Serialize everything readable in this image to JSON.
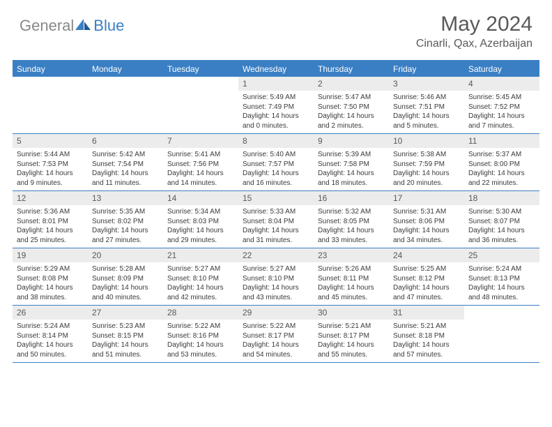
{
  "brand": {
    "general": "General",
    "blue": "Blue"
  },
  "title": {
    "month_year": "May 2024",
    "location": "Cinarli, Qax, Azerbaijan"
  },
  "colors": {
    "accent": "#3a7fc4",
    "text_muted": "#595959",
    "cell_num_bg": "#ececec",
    "body_text": "#3a3a3a",
    "background": "#ffffff"
  },
  "day_names": [
    "Sunday",
    "Monday",
    "Tuesday",
    "Wednesday",
    "Thursday",
    "Friday",
    "Saturday"
  ],
  "weeks": [
    [
      {
        "n": "",
        "l1": "",
        "l2": "",
        "l3": "",
        "l4": ""
      },
      {
        "n": "",
        "l1": "",
        "l2": "",
        "l3": "",
        "l4": ""
      },
      {
        "n": "",
        "l1": "",
        "l2": "",
        "l3": "",
        "l4": ""
      },
      {
        "n": "1",
        "l1": "Sunrise: 5:49 AM",
        "l2": "Sunset: 7:49 PM",
        "l3": "Daylight: 14 hours",
        "l4": "and 0 minutes."
      },
      {
        "n": "2",
        "l1": "Sunrise: 5:47 AM",
        "l2": "Sunset: 7:50 PM",
        "l3": "Daylight: 14 hours",
        "l4": "and 2 minutes."
      },
      {
        "n": "3",
        "l1": "Sunrise: 5:46 AM",
        "l2": "Sunset: 7:51 PM",
        "l3": "Daylight: 14 hours",
        "l4": "and 5 minutes."
      },
      {
        "n": "4",
        "l1": "Sunrise: 5:45 AM",
        "l2": "Sunset: 7:52 PM",
        "l3": "Daylight: 14 hours",
        "l4": "and 7 minutes."
      }
    ],
    [
      {
        "n": "5",
        "l1": "Sunrise: 5:44 AM",
        "l2": "Sunset: 7:53 PM",
        "l3": "Daylight: 14 hours",
        "l4": "and 9 minutes."
      },
      {
        "n": "6",
        "l1": "Sunrise: 5:42 AM",
        "l2": "Sunset: 7:54 PM",
        "l3": "Daylight: 14 hours",
        "l4": "and 11 minutes."
      },
      {
        "n": "7",
        "l1": "Sunrise: 5:41 AM",
        "l2": "Sunset: 7:56 PM",
        "l3": "Daylight: 14 hours",
        "l4": "and 14 minutes."
      },
      {
        "n": "8",
        "l1": "Sunrise: 5:40 AM",
        "l2": "Sunset: 7:57 PM",
        "l3": "Daylight: 14 hours",
        "l4": "and 16 minutes."
      },
      {
        "n": "9",
        "l1": "Sunrise: 5:39 AM",
        "l2": "Sunset: 7:58 PM",
        "l3": "Daylight: 14 hours",
        "l4": "and 18 minutes."
      },
      {
        "n": "10",
        "l1": "Sunrise: 5:38 AM",
        "l2": "Sunset: 7:59 PM",
        "l3": "Daylight: 14 hours",
        "l4": "and 20 minutes."
      },
      {
        "n": "11",
        "l1": "Sunrise: 5:37 AM",
        "l2": "Sunset: 8:00 PM",
        "l3": "Daylight: 14 hours",
        "l4": "and 22 minutes."
      }
    ],
    [
      {
        "n": "12",
        "l1": "Sunrise: 5:36 AM",
        "l2": "Sunset: 8:01 PM",
        "l3": "Daylight: 14 hours",
        "l4": "and 25 minutes."
      },
      {
        "n": "13",
        "l1": "Sunrise: 5:35 AM",
        "l2": "Sunset: 8:02 PM",
        "l3": "Daylight: 14 hours",
        "l4": "and 27 minutes."
      },
      {
        "n": "14",
        "l1": "Sunrise: 5:34 AM",
        "l2": "Sunset: 8:03 PM",
        "l3": "Daylight: 14 hours",
        "l4": "and 29 minutes."
      },
      {
        "n": "15",
        "l1": "Sunrise: 5:33 AM",
        "l2": "Sunset: 8:04 PM",
        "l3": "Daylight: 14 hours",
        "l4": "and 31 minutes."
      },
      {
        "n": "16",
        "l1": "Sunrise: 5:32 AM",
        "l2": "Sunset: 8:05 PM",
        "l3": "Daylight: 14 hours",
        "l4": "and 33 minutes."
      },
      {
        "n": "17",
        "l1": "Sunrise: 5:31 AM",
        "l2": "Sunset: 8:06 PM",
        "l3": "Daylight: 14 hours",
        "l4": "and 34 minutes."
      },
      {
        "n": "18",
        "l1": "Sunrise: 5:30 AM",
        "l2": "Sunset: 8:07 PM",
        "l3": "Daylight: 14 hours",
        "l4": "and 36 minutes."
      }
    ],
    [
      {
        "n": "19",
        "l1": "Sunrise: 5:29 AM",
        "l2": "Sunset: 8:08 PM",
        "l3": "Daylight: 14 hours",
        "l4": "and 38 minutes."
      },
      {
        "n": "20",
        "l1": "Sunrise: 5:28 AM",
        "l2": "Sunset: 8:09 PM",
        "l3": "Daylight: 14 hours",
        "l4": "and 40 minutes."
      },
      {
        "n": "21",
        "l1": "Sunrise: 5:27 AM",
        "l2": "Sunset: 8:10 PM",
        "l3": "Daylight: 14 hours",
        "l4": "and 42 minutes."
      },
      {
        "n": "22",
        "l1": "Sunrise: 5:27 AM",
        "l2": "Sunset: 8:10 PM",
        "l3": "Daylight: 14 hours",
        "l4": "and 43 minutes."
      },
      {
        "n": "23",
        "l1": "Sunrise: 5:26 AM",
        "l2": "Sunset: 8:11 PM",
        "l3": "Daylight: 14 hours",
        "l4": "and 45 minutes."
      },
      {
        "n": "24",
        "l1": "Sunrise: 5:25 AM",
        "l2": "Sunset: 8:12 PM",
        "l3": "Daylight: 14 hours",
        "l4": "and 47 minutes."
      },
      {
        "n": "25",
        "l1": "Sunrise: 5:24 AM",
        "l2": "Sunset: 8:13 PM",
        "l3": "Daylight: 14 hours",
        "l4": "and 48 minutes."
      }
    ],
    [
      {
        "n": "26",
        "l1": "Sunrise: 5:24 AM",
        "l2": "Sunset: 8:14 PM",
        "l3": "Daylight: 14 hours",
        "l4": "and 50 minutes."
      },
      {
        "n": "27",
        "l1": "Sunrise: 5:23 AM",
        "l2": "Sunset: 8:15 PM",
        "l3": "Daylight: 14 hours",
        "l4": "and 51 minutes."
      },
      {
        "n": "28",
        "l1": "Sunrise: 5:22 AM",
        "l2": "Sunset: 8:16 PM",
        "l3": "Daylight: 14 hours",
        "l4": "and 53 minutes."
      },
      {
        "n": "29",
        "l1": "Sunrise: 5:22 AM",
        "l2": "Sunset: 8:17 PM",
        "l3": "Daylight: 14 hours",
        "l4": "and 54 minutes."
      },
      {
        "n": "30",
        "l1": "Sunrise: 5:21 AM",
        "l2": "Sunset: 8:17 PM",
        "l3": "Daylight: 14 hours",
        "l4": "and 55 minutes."
      },
      {
        "n": "31",
        "l1": "Sunrise: 5:21 AM",
        "l2": "Sunset: 8:18 PM",
        "l3": "Daylight: 14 hours",
        "l4": "and 57 minutes."
      },
      {
        "n": "",
        "l1": "",
        "l2": "",
        "l3": "",
        "l4": ""
      }
    ]
  ]
}
